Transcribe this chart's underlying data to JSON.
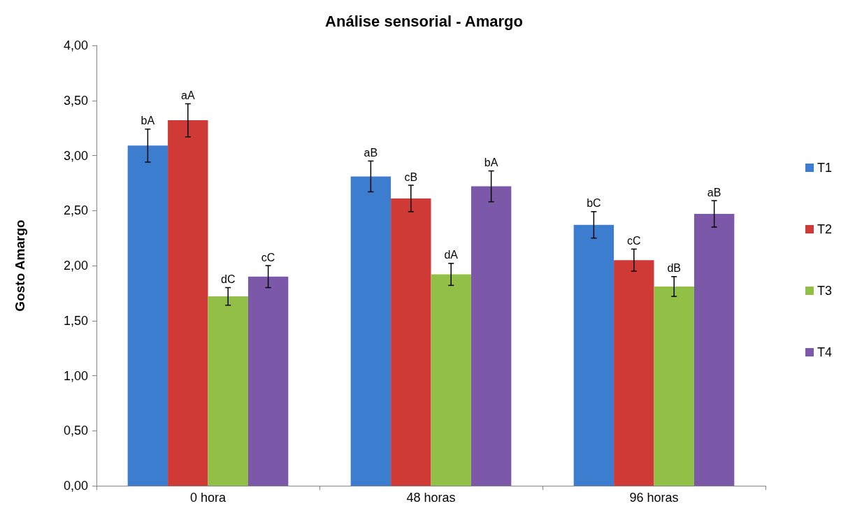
{
  "chart_data": {
    "type": "bar",
    "title": "Análise sensorial - Amargo",
    "ylabel": "Gosto Amargo",
    "categories": [
      "0 hora",
      "48 horas",
      "96 horas"
    ],
    "series": [
      {
        "name": "T1",
        "color": "#3c7dd0",
        "values": [
          3.09,
          2.81,
          2.37
        ],
        "errors": [
          0.15,
          0.14,
          0.12
        ],
        "value_labels": [
          "bA",
          "aB",
          "bC"
        ]
      },
      {
        "name": "T2",
        "color": "#d03a36",
        "values": [
          3.32,
          2.61,
          2.05
        ],
        "errors": [
          0.15,
          0.12,
          0.1
        ],
        "value_labels": [
          "aA",
          "cB",
          "cC"
        ]
      },
      {
        "name": "T3",
        "color": "#92c047",
        "values": [
          1.72,
          1.92,
          1.81
        ],
        "errors": [
          0.08,
          0.1,
          0.09
        ],
        "value_labels": [
          "dC",
          "dA",
          "dB"
        ]
      },
      {
        "name": "T4",
        "color": "#7b58a8",
        "values": [
          1.9,
          2.72,
          2.47
        ],
        "errors": [
          0.1,
          0.14,
          0.12
        ],
        "value_labels": [
          "cC",
          "bA",
          "aB"
        ]
      }
    ],
    "ylim": [
      0,
      4
    ],
    "yticks": [
      {
        "value": 0,
        "label": "0,00"
      },
      {
        "value": 0.5,
        "label": "0,50"
      },
      {
        "value": 1,
        "label": "1,00"
      },
      {
        "value": 1.5,
        "label": "1,50"
      },
      {
        "value": 2,
        "label": "2,00"
      },
      {
        "value": 2.5,
        "label": "2,50"
      },
      {
        "value": 3,
        "label": "3,00"
      },
      {
        "value": 3.5,
        "label": "3,50"
      },
      {
        "value": 4,
        "label": "4,00"
      }
    ],
    "grid": false,
    "legend": "right"
  }
}
